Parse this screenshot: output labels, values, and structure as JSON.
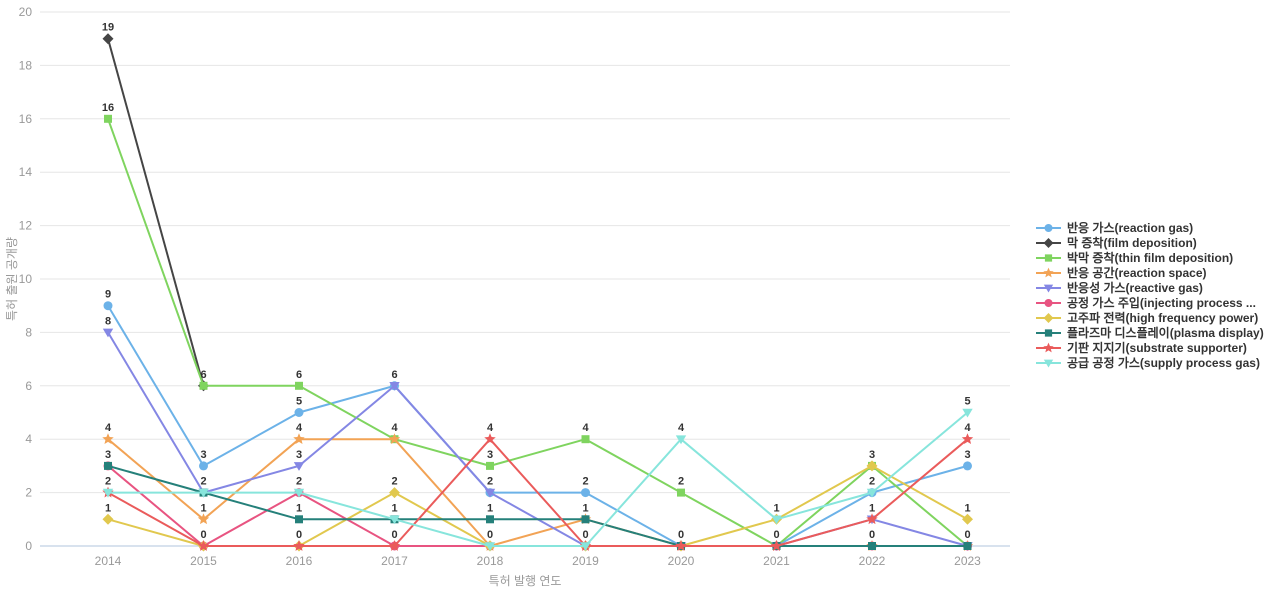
{
  "page": {
    "background": "#ffffff"
  },
  "chart_data": {
    "type": "line",
    "title": "",
    "xlabel": "특허 발행 연도",
    "ylabel": "특허 출원 공개량",
    "x": [
      "2014",
      "2015",
      "2016",
      "2017",
      "2018",
      "2019",
      "2020",
      "2021",
      "2022",
      "2023"
    ],
    "ylim": [
      0,
      20
    ],
    "yticks": [
      0,
      2,
      4,
      6,
      8,
      10,
      12,
      14,
      16,
      18,
      20
    ],
    "grid": true,
    "legend_position": "right",
    "point_labels": "unique value per x shown above points",
    "series": [
      {
        "name": "반응 가스(reaction gas)",
        "color": "#6cb2e8",
        "marker": "circle",
        "values": [
          9,
          3,
          5,
          6,
          2,
          2,
          0,
          0,
          2,
          3
        ]
      },
      {
        "name": "막 증착(film deposition)",
        "color": "#454545",
        "marker": "diamond",
        "values": [
          19,
          6,
          null,
          null,
          null,
          null,
          null,
          null,
          null,
          null
        ]
      },
      {
        "name": "박막 증착(thin film deposition)",
        "color": "#7fd45f",
        "marker": "square",
        "values": [
          16,
          6,
          6,
          4,
          3,
          4,
          2,
          0,
          3,
          0
        ]
      },
      {
        "name": "반응 공간(reaction space)",
        "color": "#f2a355",
        "marker": "star",
        "values": [
          4,
          1,
          4,
          4,
          0,
          1,
          0,
          0,
          0,
          0
        ]
      },
      {
        "name": "반응성 가스(reactive gas)",
        "color": "#8487e4",
        "marker": "triangle-down",
        "values": [
          8,
          2,
          3,
          6,
          2,
          0,
          0,
          0,
          1,
          0
        ]
      },
      {
        "name": "공정 가스 주입(injecting process ...",
        "color": "#e85481",
        "marker": "circle",
        "values": [
          3,
          0,
          2,
          0,
          0,
          0,
          0,
          0,
          0,
          0
        ]
      },
      {
        "name": "고주파 전력(high frequency power)",
        "color": "#e1c84e",
        "marker": "diamond",
        "values": [
          1,
          0,
          0,
          2,
          0,
          0,
          0,
          1,
          3,
          1
        ]
      },
      {
        "name": "플라즈마 디스플레이(plasma display)",
        "color": "#25807a",
        "marker": "square",
        "values": [
          3,
          2,
          1,
          1,
          1,
          1,
          0,
          0,
          0,
          0
        ]
      },
      {
        "name": "기판 지지기(substrate supporter)",
        "color": "#ea5b5b",
        "marker": "star",
        "values": [
          2,
          0,
          0,
          0,
          4,
          0,
          0,
          0,
          1,
          4
        ]
      },
      {
        "name": "공급 공정 가스(supply process gas)",
        "color": "#87e5dc",
        "marker": "triangle-down",
        "values": [
          2,
          2,
          2,
          1,
          0,
          0,
          4,
          1,
          2,
          5
        ]
      }
    ],
    "colors": {
      "grid_line": "#e6e6e6",
      "axis_line": "#b0c4de",
      "tick_text": "#999999",
      "axis_title_text": "#999999",
      "point_label_text": "#333333",
      "legend_text": "#333333"
    }
  }
}
